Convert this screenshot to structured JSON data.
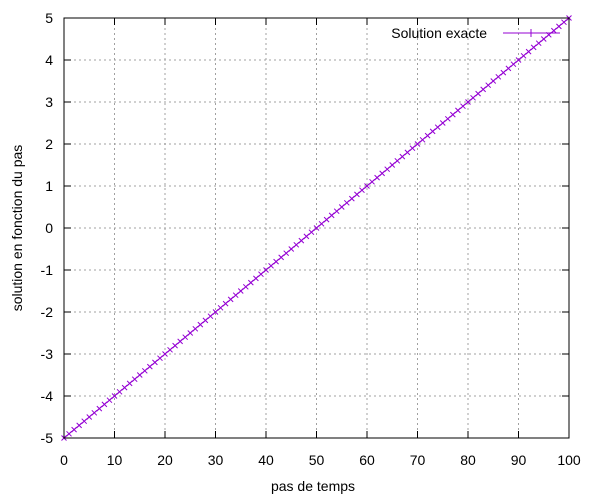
{
  "chart_data": {
    "type": "line",
    "xlabel": "pas de temps",
    "ylabel": "solution en fonction du pas",
    "xlim": [
      0,
      100
    ],
    "ylim": [
      -5,
      5
    ],
    "xticks": [
      0,
      10,
      20,
      30,
      40,
      50,
      60,
      70,
      80,
      90,
      100
    ],
    "yticks": [
      -5,
      -4,
      -3,
      -2,
      -1,
      0,
      1,
      2,
      3,
      4,
      5
    ],
    "grid": true,
    "legend_position": "top-right",
    "series": [
      {
        "name": "Solution exacte",
        "color": "#9400d3",
        "marker": "cross",
        "x_start": 0,
        "x_end": 100,
        "x_step": 1,
        "y_formula": "y = 0.1*x - 5",
        "x": [
          0,
          100
        ],
        "y": [
          -5,
          5
        ]
      }
    ]
  }
}
